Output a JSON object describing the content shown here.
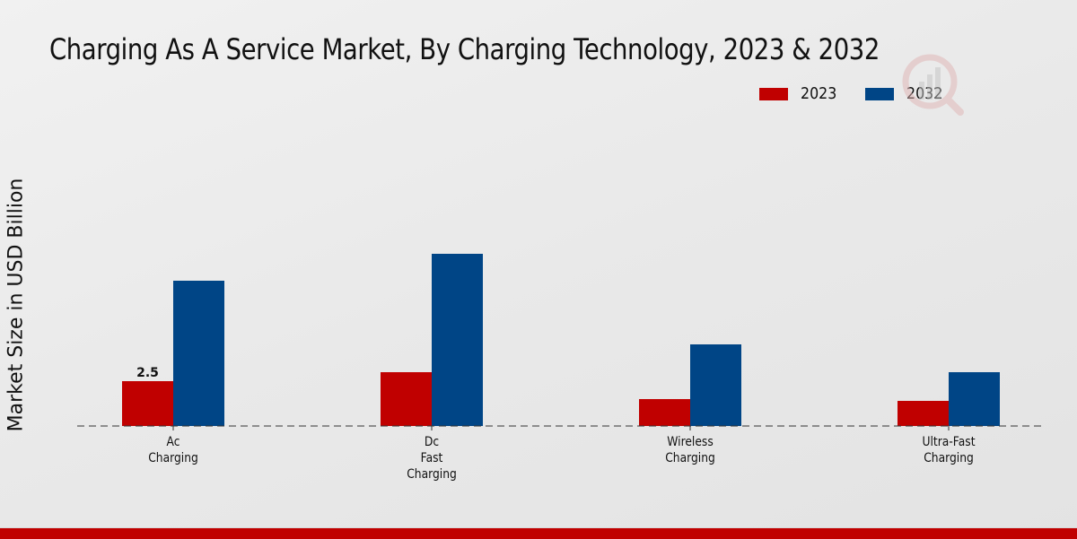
{
  "chart_data": {
    "type": "bar",
    "title": "Charging As A Service Market, By Charging Technology, 2023 & 2032",
    "xlabel": "",
    "ylabel": "Market Size in USD Billion",
    "categories": [
      [
        "Ac",
        "Charging"
      ],
      [
        "Dc",
        "Fast",
        "Charging"
      ],
      [
        "Wireless",
        "Charging"
      ],
      [
        "Ultra-Fast",
        "Charging"
      ]
    ],
    "series": [
      {
        "name": "2023",
        "color": "#c00000",
        "values": [
          2.5,
          3.0,
          1.5,
          1.4
        ]
      },
      {
        "name": "2032",
        "color": "#004586",
        "values": [
          8.1,
          9.6,
          4.55,
          3.0
        ]
      }
    ],
    "data_labels": [
      {
        "series": 0,
        "index": 0,
        "text": "2.5"
      }
    ],
    "ylim": [
      0,
      10
    ],
    "grid": false,
    "legend_position": "top-right",
    "baseline_style": "dashed"
  },
  "footer_color": "#c00000"
}
